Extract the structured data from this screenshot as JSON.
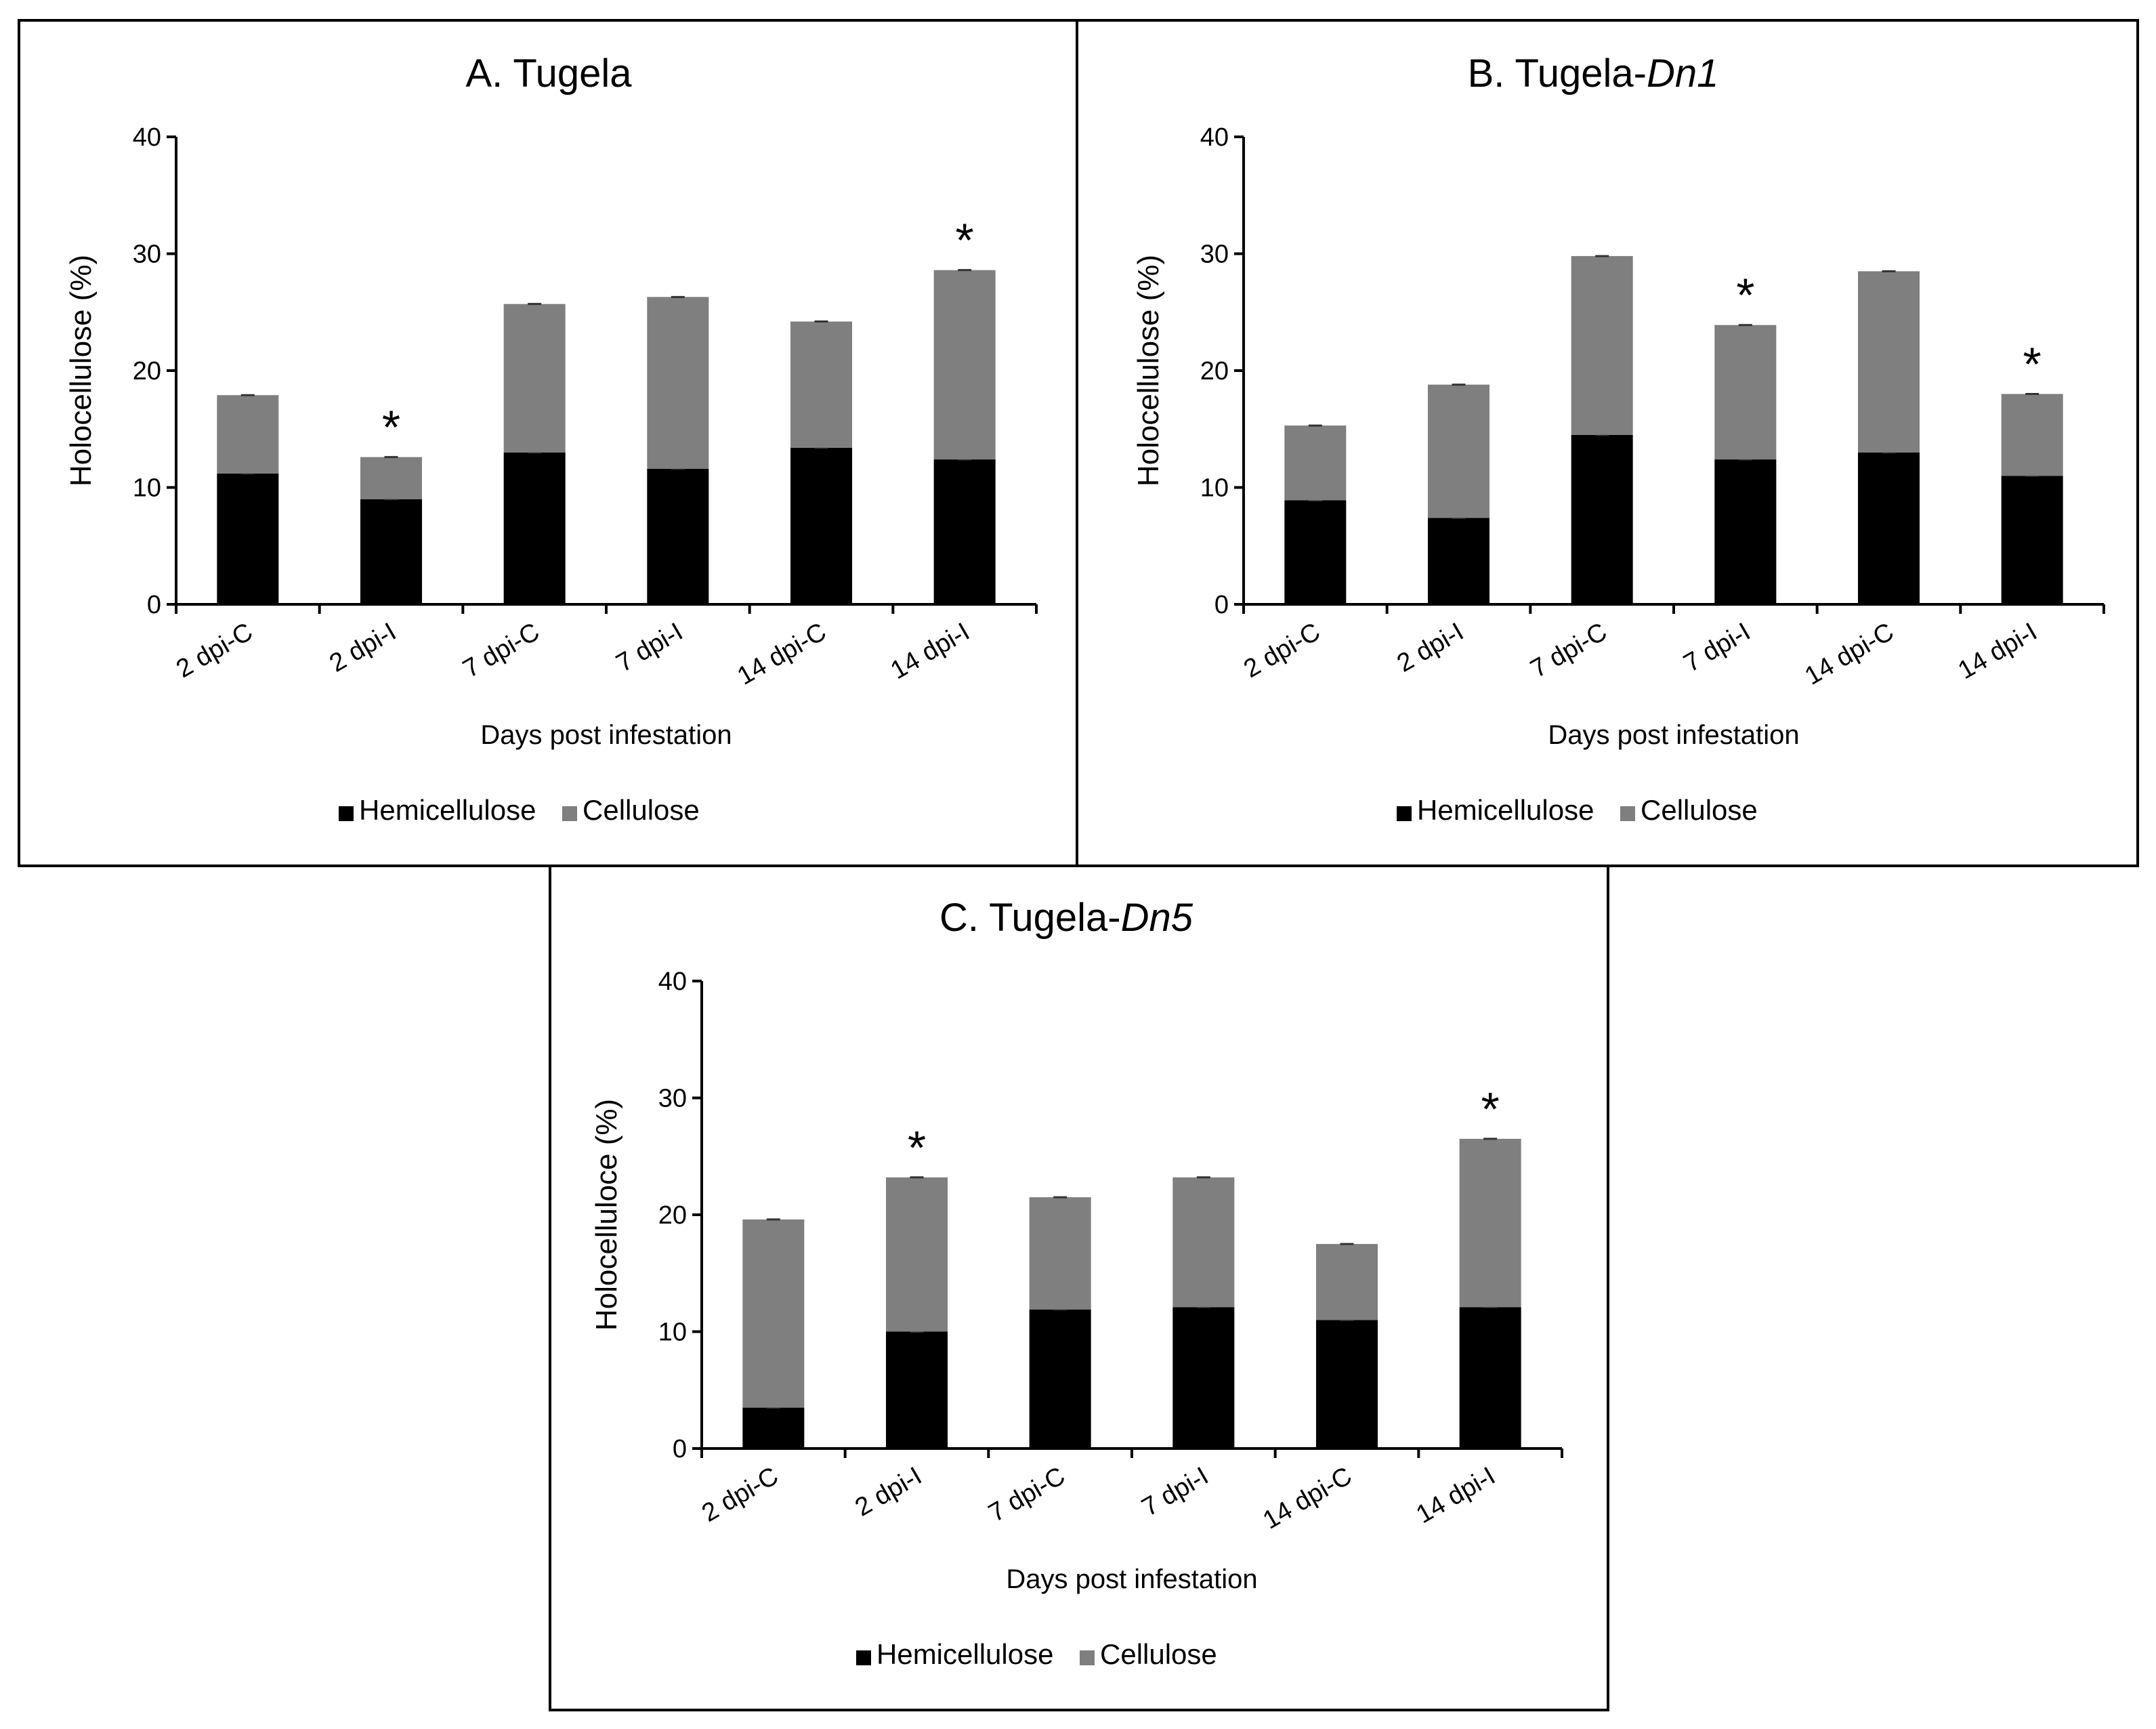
{
  "colors": {
    "hemicellulose": "#000000",
    "cellulose": "#7f7f7f",
    "axis": "#000000"
  },
  "chart_data": [
    {
      "type": "bar",
      "stacked": true,
      "title": {
        "prefix": "A. Tugela",
        "italic": ""
      },
      "xlabel": "Days post infestation",
      "ylabel": "Holocellulose (%)",
      "ylim": [
        0,
        40
      ],
      "yticks": [
        0,
        10,
        20,
        30,
        40
      ],
      "categories": [
        "2 dpi-C",
        "2 dpi-I",
        "7 dpi-C",
        "7 dpi-I",
        "14 dpi-C",
        "14 dpi-I"
      ],
      "series": [
        {
          "name": "Hemicellulose",
          "values": [
            11.2,
            9.0,
            13.0,
            11.6,
            13.4,
            12.4
          ]
        },
        {
          "name": "Cellulose",
          "values": [
            6.7,
            3.6,
            12.7,
            14.7,
            10.8,
            16.2
          ]
        }
      ],
      "significant": [
        "",
        "*",
        "",
        "",
        "",
        "*"
      ],
      "legend": [
        "Hemicellulose",
        "Cellulose"
      ]
    },
    {
      "type": "bar",
      "stacked": true,
      "title": {
        "prefix": "B. Tugela-",
        "italic": "Dn1"
      },
      "xlabel": "Days post infestation",
      "ylabel": "Holocellulose (%)",
      "ylim": [
        0,
        40
      ],
      "yticks": [
        0,
        10,
        20,
        30,
        40
      ],
      "categories": [
        "2 dpi-C",
        "2 dpi-I",
        "7 dpi-C",
        "7 dpi-I",
        "14 dpi-C",
        "14 dpi-I"
      ],
      "series": [
        {
          "name": "Hemicellulose",
          "values": [
            8.9,
            7.4,
            14.5,
            12.4,
            13.0,
            11.0
          ]
        },
        {
          "name": "Cellulose",
          "values": [
            6.4,
            11.4,
            15.3,
            11.5,
            15.5,
            7.0
          ]
        }
      ],
      "significant": [
        "",
        "",
        "",
        "*",
        "",
        "*"
      ],
      "legend": [
        "Hemicellulose",
        "Cellulose"
      ]
    },
    {
      "type": "bar",
      "stacked": true,
      "title": {
        "prefix": "C. Tugela-",
        "italic": "Dn5"
      },
      "xlabel": "Days post infestation",
      "ylabel": "Holocelluloce (%)",
      "ylim": [
        0,
        40
      ],
      "yticks": [
        0,
        10,
        20,
        30,
        40
      ],
      "categories": [
        "2 dpi-C",
        "2 dpi-I",
        "7 dpi-C",
        "7 dpi-I",
        "14 dpi-C",
        "14 dpi-I"
      ],
      "series": [
        {
          "name": "Hemicellulose",
          "values": [
            3.5,
            10.0,
            11.9,
            12.1,
            11.0,
            12.1
          ]
        },
        {
          "name": "Cellulose",
          "values": [
            16.1,
            13.2,
            9.6,
            11.1,
            6.5,
            14.4
          ]
        }
      ],
      "significant": [
        "",
        "*",
        "",
        "",
        "",
        "*"
      ],
      "legend": [
        "Hemicellulose",
        "Cellulose"
      ]
    }
  ]
}
